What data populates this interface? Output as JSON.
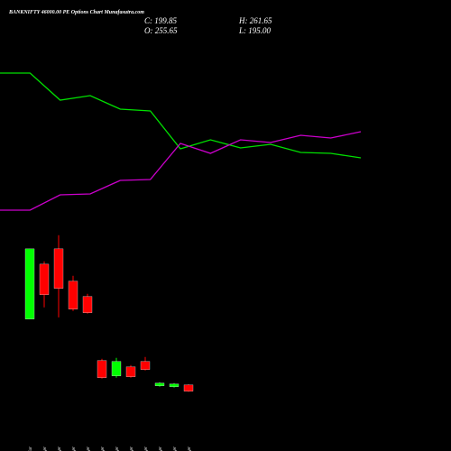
{
  "header": {
    "title": "BANKNIFTY 46000.00 PE Options  Chart Munafasutra.com",
    "close": "C: 199.85",
    "high": "H: 261.65",
    "open": "O: 255.65",
    "low": "L: 195.00"
  },
  "chart_data": [
    {
      "type": "line",
      "x": [
        0,
        1,
        2,
        3,
        4,
        5,
        6,
        7,
        8,
        9,
        10,
        11,
        12
      ],
      "xlim": [
        0,
        12
      ],
      "ylim": [
        0,
        100
      ],
      "series": [
        {
          "color": "#00e000",
          "values": [
            89.5,
            89.5,
            74.5,
            77,
            69.5,
            68.5,
            47.5,
            52.5,
            48,
            50,
            45.5,
            45,
            42.5
          ]
        },
        {
          "color": "#cc00cc",
          "values": [
            13.5,
            13.5,
            22,
            22.5,
            30,
            30.5,
            50.5,
            45,
            52.5,
            51,
            55,
            53.5,
            57
          ]
        }
      ]
    },
    {
      "type": "candlestick",
      "categories": [
        "20 Mar",
        "01 Apr",
        "02 Apr",
        "06 Apr",
        "07 Apr",
        "08 Apr",
        "09 Apr",
        "10 Apr",
        "13 Apr",
        "15 Apr",
        "16 Apr",
        "17 Apr"
      ],
      "open": [
        840,
        1327,
        1463,
        1176,
        1040,
        472,
        336,
        416,
        464,
        248,
        240,
        255.65
      ],
      "high": [
        1463,
        1352,
        1584,
        1224,
        1064,
        488,
        496,
        432,
        504,
        280,
        272,
        261.65
      ],
      "low": [
        840,
        944,
        855,
        912,
        888,
        312,
        320,
        320,
        384,
        240,
        232,
        195.0
      ],
      "close": [
        1463,
        1056,
        1112,
        928,
        896,
        320,
        464,
        328,
        392,
        272,
        264,
        199.85
      ],
      "up_color": "#00ff00",
      "down_color": "#ff0000",
      "ylim": [
        150,
        1670
      ]
    }
  ]
}
